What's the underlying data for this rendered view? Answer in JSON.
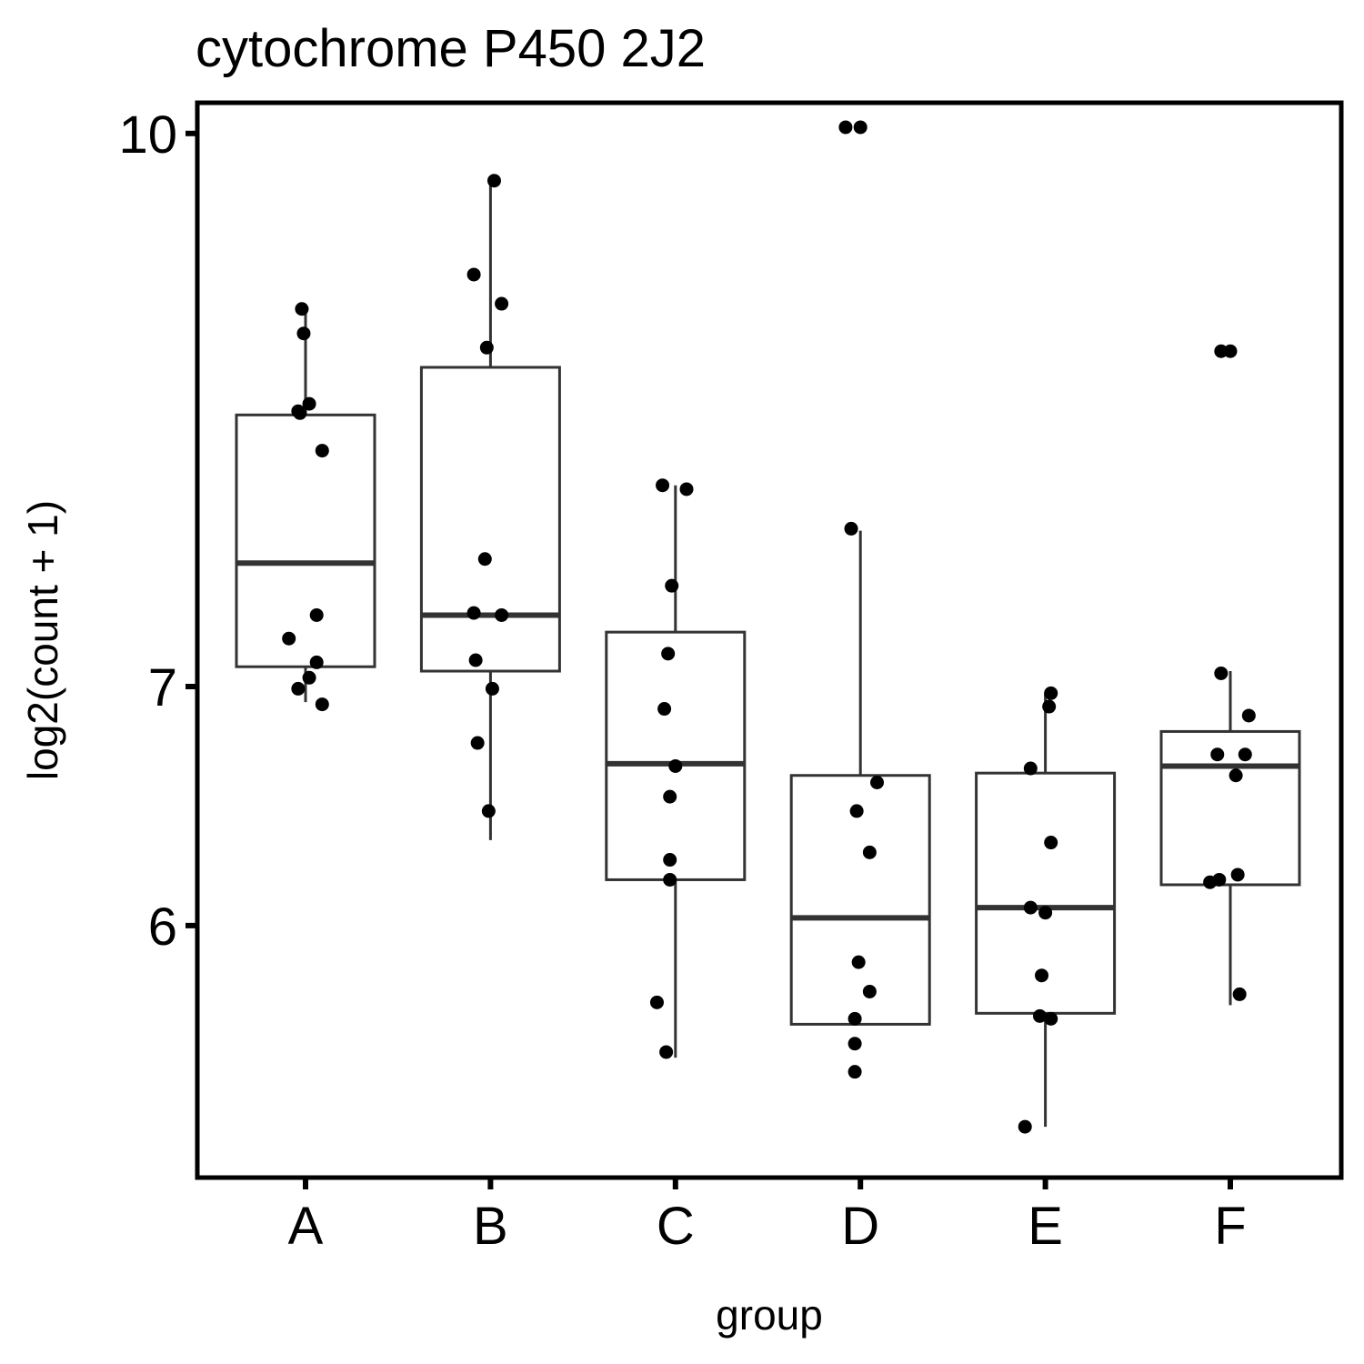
{
  "chart_data": {
    "type": "box",
    "title": "cytochrome P450 2J2",
    "xlabel": "group",
    "ylabel": "log2(count + 1)",
    "y_scale": "log2",
    "ylim": [
      5.1,
      10.2
    ],
    "y_ticks": [
      6,
      7,
      10
    ],
    "y_tick_labels": [
      "6",
      "7",
      "10"
    ],
    "categories": [
      "A",
      "B",
      "C",
      "D",
      "E",
      "F"
    ],
    "grid": false,
    "colors": {
      "box_stroke": "#333333",
      "points": "#000000",
      "frame": "#000000"
    },
    "boxes": [
      {
        "group": "A",
        "q1": 7.09,
        "median": 7.58,
        "q3": 8.34,
        "whisker_low": 6.93,
        "whisker_high": 8.93
      },
      {
        "group": "B",
        "q1": 7.07,
        "median": 7.33,
        "q3": 8.6,
        "whisker_low": 6.34,
        "whisker_high": 9.7
      },
      {
        "group": "C",
        "q1": 6.18,
        "median": 6.66,
        "q3": 7.25,
        "whisker_low": 5.51,
        "whisker_high": 7.97
      },
      {
        "group": "D",
        "q1": 5.63,
        "median": 6.03,
        "q3": 6.61,
        "whisker_low": 5.63,
        "whisker_high": 7.74
      },
      {
        "group": "E",
        "q1": 5.67,
        "median": 6.07,
        "q3": 6.62,
        "whisker_low": 5.27,
        "whisker_high": 6.97
      },
      {
        "group": "F",
        "q1": 6.16,
        "median": 6.65,
        "q3": 6.8,
        "whisker_low": 5.7,
        "whisker_high": 7.07
      }
    ],
    "points": [
      {
        "group": "A",
        "jitter": -0.02,
        "y": 8.93
      },
      {
        "group": "A",
        "jitter": -0.01,
        "y": 8.79
      },
      {
        "group": "A",
        "jitter": 0.02,
        "y": 8.4
      },
      {
        "group": "A",
        "jitter": -0.04,
        "y": 8.36
      },
      {
        "group": "A",
        "jitter": -0.03,
        "y": 8.35
      },
      {
        "group": "A",
        "jitter": 0.09,
        "y": 8.15
      },
      {
        "group": "A",
        "jitter": 0.06,
        "y": 7.33
      },
      {
        "group": "A",
        "jitter": -0.09,
        "y": 7.22
      },
      {
        "group": "A",
        "jitter": 0.06,
        "y": 7.11
      },
      {
        "group": "A",
        "jitter": 0.02,
        "y": 7.04
      },
      {
        "group": "A",
        "jitter": -0.04,
        "y": 6.99
      },
      {
        "group": "A",
        "jitter": 0.09,
        "y": 6.92
      },
      {
        "group": "B",
        "jitter": 0.02,
        "y": 9.7
      },
      {
        "group": "B",
        "jitter": -0.09,
        "y": 9.13
      },
      {
        "group": "B",
        "jitter": 0.06,
        "y": 8.96
      },
      {
        "group": "B",
        "jitter": -0.02,
        "y": 8.71
      },
      {
        "group": "B",
        "jitter": -0.03,
        "y": 7.6
      },
      {
        "group": "B",
        "jitter": -0.09,
        "y": 7.34
      },
      {
        "group": "B",
        "jitter": 0.06,
        "y": 7.33
      },
      {
        "group": "B",
        "jitter": -0.08,
        "y": 7.12
      },
      {
        "group": "B",
        "jitter": 0.01,
        "y": 6.99
      },
      {
        "group": "B",
        "jitter": -0.07,
        "y": 6.75
      },
      {
        "group": "B",
        "jitter": -0.01,
        "y": 6.46
      },
      {
        "group": "C",
        "jitter": -0.07,
        "y": 7.97
      },
      {
        "group": "C",
        "jitter": 0.06,
        "y": 7.95
      },
      {
        "group": "C",
        "jitter": -0.02,
        "y": 7.47
      },
      {
        "group": "C",
        "jitter": -0.04,
        "y": 7.15
      },
      {
        "group": "C",
        "jitter": -0.06,
        "y": 6.9
      },
      {
        "group": "C",
        "jitter": 0.0,
        "y": 6.65
      },
      {
        "group": "C",
        "jitter": -0.03,
        "y": 6.52
      },
      {
        "group": "C",
        "jitter": -0.03,
        "y": 6.26
      },
      {
        "group": "C",
        "jitter": -0.03,
        "y": 6.18
      },
      {
        "group": "C",
        "jitter": -0.1,
        "y": 5.71
      },
      {
        "group": "C",
        "jitter": -0.05,
        "y": 5.53
      },
      {
        "group": "D",
        "jitter": -0.08,
        "y": 10.04
      },
      {
        "group": "D",
        "jitter": 0.0,
        "y": 10.04
      },
      {
        "group": "D",
        "jitter": -0.05,
        "y": 7.75
      },
      {
        "group": "D",
        "jitter": 0.09,
        "y": 6.58
      },
      {
        "group": "D",
        "jitter": -0.02,
        "y": 6.46
      },
      {
        "group": "D",
        "jitter": 0.05,
        "y": 6.29
      },
      {
        "group": "D",
        "jitter": -0.01,
        "y": 5.86
      },
      {
        "group": "D",
        "jitter": 0.05,
        "y": 5.75
      },
      {
        "group": "D",
        "jitter": -0.03,
        "y": 5.65
      },
      {
        "group": "D",
        "jitter": -0.03,
        "y": 5.56
      },
      {
        "group": "D",
        "jitter": -0.03,
        "y": 5.46
      },
      {
        "group": "E",
        "jitter": 0.03,
        "y": 6.97
      },
      {
        "group": "E",
        "jitter": 0.02,
        "y": 6.91
      },
      {
        "group": "E",
        "jitter": -0.08,
        "y": 6.64
      },
      {
        "group": "E",
        "jitter": 0.03,
        "y": 6.33
      },
      {
        "group": "E",
        "jitter": -0.08,
        "y": 6.07
      },
      {
        "group": "E",
        "jitter": 0.0,
        "y": 6.05
      },
      {
        "group": "E",
        "jitter": -0.02,
        "y": 5.81
      },
      {
        "group": "E",
        "jitter": -0.03,
        "y": 5.66
      },
      {
        "group": "E",
        "jitter": 0.03,
        "y": 5.65
      },
      {
        "group": "E",
        "jitter": -0.11,
        "y": 5.27
      },
      {
        "group": "F",
        "jitter": -0.05,
        "y": 8.69
      },
      {
        "group": "F",
        "jitter": 0.0,
        "y": 8.69
      },
      {
        "group": "F",
        "jitter": -0.05,
        "y": 7.06
      },
      {
        "group": "F",
        "jitter": 0.1,
        "y": 6.87
      },
      {
        "group": "F",
        "jitter": -0.07,
        "y": 6.7
      },
      {
        "group": "F",
        "jitter": 0.08,
        "y": 6.7
      },
      {
        "group": "F",
        "jitter": 0.03,
        "y": 6.61
      },
      {
        "group": "F",
        "jitter": -0.11,
        "y": 6.17
      },
      {
        "group": "F",
        "jitter": -0.06,
        "y": 6.18
      },
      {
        "group": "F",
        "jitter": 0.04,
        "y": 6.2
      },
      {
        "group": "F",
        "jitter": 0.05,
        "y": 5.74
      }
    ]
  }
}
